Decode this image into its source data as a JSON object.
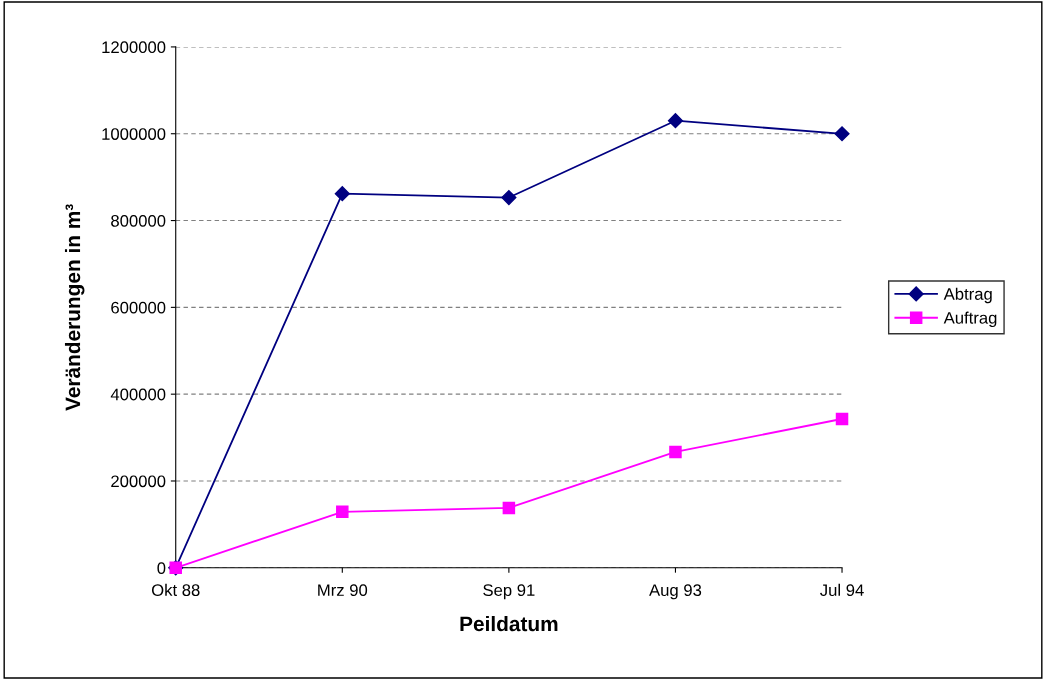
{
  "chart_data": {
    "type": "line",
    "xlabel": "Peildatum",
    "ylabel": "Veränderungen in m³",
    "categories": [
      "Okt 88",
      "Mrz 90",
      "Sep 91",
      "Aug 93",
      "Jul 94"
    ],
    "series": [
      {
        "name": "Abtrag",
        "color": "#000080",
        "marker": "diamond",
        "values": [
          0,
          862000,
          853000,
          1030000,
          1000000
        ]
      },
      {
        "name": "Auftrag",
        "color": "#ff00ff",
        "marker": "square",
        "values": [
          0,
          129000,
          138000,
          267000,
          343000
        ]
      }
    ],
    "ylim": [
      0,
      1200000
    ],
    "yticks": [
      0,
      200000,
      400000,
      600000,
      800000,
      1000000,
      1200000
    ],
    "grid": "y",
    "legend": "right",
    "line_style": "solid"
  }
}
